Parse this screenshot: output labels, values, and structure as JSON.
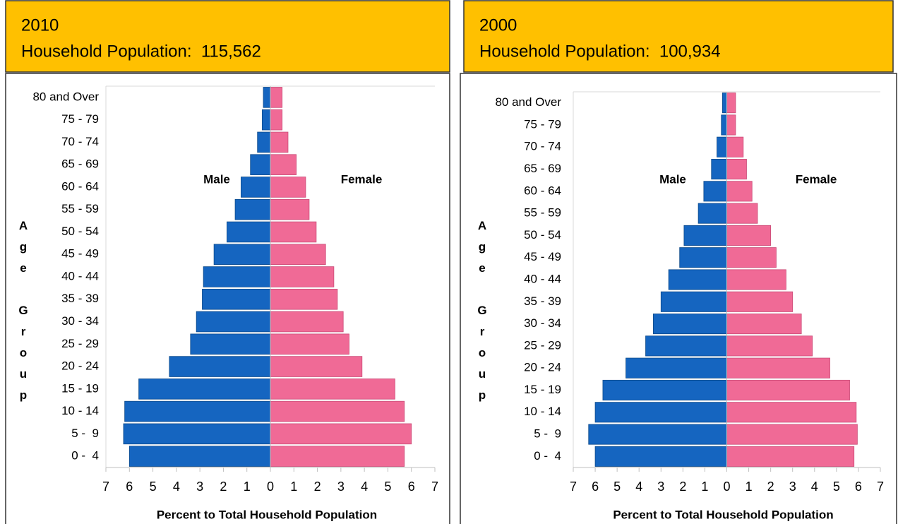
{
  "chart_data": [
    {
      "type": "pyramid",
      "title": "2010",
      "subtitle": "Household Population:  115,562",
      "categories": [
        "0 -  4",
        "5 -  9",
        "10 - 14",
        "15 - 19",
        "20 - 24",
        "25 - 29",
        "30 - 34",
        "35 - 39",
        "40 - 44",
        "45 - 49",
        "50 - 54",
        "55 - 59",
        "60 - 64",
        "65 - 69",
        "70 - 74",
        "75 - 79",
        "80 and Over"
      ],
      "series": [
        {
          "name": "Male",
          "color": "#1565c0",
          "values": [
            6.0,
            6.25,
            6.2,
            5.6,
            4.3,
            3.4,
            3.15,
            2.9,
            2.85,
            2.4,
            1.85,
            1.5,
            1.25,
            0.85,
            0.55,
            0.35,
            0.3
          ]
        },
        {
          "name": "Female",
          "color": "#f06a96",
          "values": [
            5.7,
            6.0,
            5.7,
            5.3,
            3.9,
            3.35,
            3.1,
            2.85,
            2.7,
            2.35,
            1.95,
            1.65,
            1.5,
            1.1,
            0.75,
            0.5,
            0.5
          ]
        }
      ],
      "xlim": [
        -7,
        7
      ],
      "xticks": [
        {
          "value": -7,
          "label": "7"
        },
        {
          "value": -6,
          "label": "6"
        },
        {
          "value": -5,
          "label": "5"
        },
        {
          "value": -4,
          "label": "4"
        },
        {
          "value": -3,
          "label": "3"
        },
        {
          "value": -2,
          "label": "2"
        },
        {
          "value": -1,
          "label": "1"
        },
        0,
        1,
        2,
        3,
        4,
        5,
        6,
        7
      ],
      "x_label": "Percent to Total Household Population",
      "y_label": "Age Group"
    },
    {
      "type": "pyramid",
      "title": "2000",
      "subtitle": "Household Population:  100,934",
      "categories": [
        "0 -  4",
        "5 -  9",
        "10 - 14",
        "15 - 19",
        "20 - 24",
        "25 - 29",
        "30 - 34",
        "35 - 39",
        "40 - 44",
        "45 - 49",
        "50 - 54",
        "55 - 59",
        "60 - 64",
        "65 - 69",
        "70 - 74",
        "75 - 79",
        "80 and Over"
      ],
      "series": [
        {
          "name": "Male",
          "color": "#1565c0",
          "values": [
            6.0,
            6.3,
            6.0,
            5.65,
            4.6,
            3.7,
            3.35,
            3.0,
            2.65,
            2.15,
            1.95,
            1.3,
            1.05,
            0.7,
            0.45,
            0.25,
            0.2
          ]
        },
        {
          "name": "Female",
          "color": "#f06a96",
          "values": [
            5.8,
            5.95,
            5.9,
            5.6,
            4.7,
            3.9,
            3.4,
            3.0,
            2.7,
            2.25,
            2.0,
            1.4,
            1.15,
            0.9,
            0.75,
            0.4,
            0.4
          ]
        }
      ],
      "xlim": [
        -7,
        7
      ],
      "xticks": [
        {
          "value": -7,
          "label": "7"
        },
        {
          "value": -6,
          "label": "6"
        },
        {
          "value": -5,
          "label": "5"
        },
        {
          "value": -4,
          "label": "4"
        },
        {
          "value": -3,
          "label": "3"
        },
        {
          "value": -2,
          "label": "2"
        },
        {
          "value": -1,
          "label": "1"
        },
        0,
        1,
        2,
        3,
        4,
        5,
        6,
        7
      ],
      "x_label": "Percent to Total Household Population",
      "y_label": "Age Group"
    }
  ]
}
